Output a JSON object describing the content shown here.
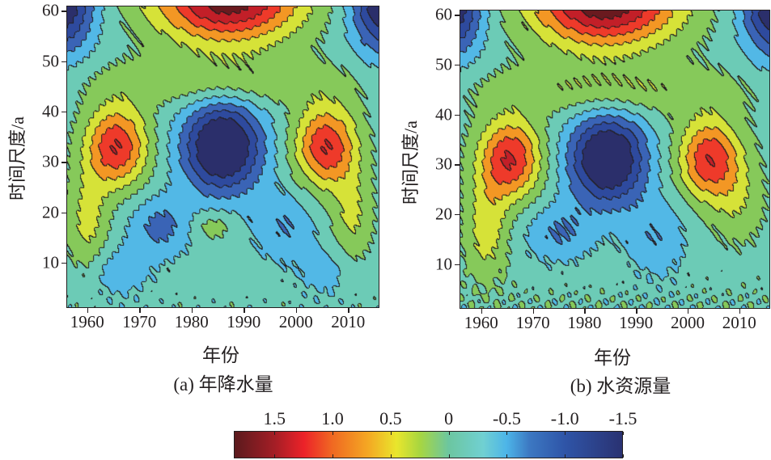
{
  "chart_data": [
    {
      "type": "heatmap",
      "subtype": "filled-contour",
      "title": "(a) 年降水量",
      "xlabel": "年份",
      "ylabel": "时间尺度/a",
      "xlim": [
        1956,
        2016
      ],
      "ylim": [
        1,
        61
      ],
      "xticks": [
        "1960",
        "1970",
        "1980",
        "1990",
        "2000",
        "2010"
      ],
      "yticks": [
        "10",
        "20",
        "30",
        "40",
        "50",
        "60"
      ],
      "features": [
        {
          "year": 1987,
          "scale": 63,
          "value": 1.9,
          "spread_year": 14,
          "spread_scale": 9
        },
        {
          "year": 1955,
          "scale": 62,
          "value": -1.4,
          "spread_year": 6,
          "spread_scale": 10
        },
        {
          "year": 2017,
          "scale": 62,
          "value": -1.4,
          "spread_year": 6,
          "spread_scale": 10
        },
        {
          "year": 1965.5,
          "scale": 33,
          "value": 1.35,
          "spread_year": 6,
          "spread_scale": 8
        },
        {
          "year": 2006,
          "scale": 33,
          "value": 1.35,
          "spread_year": 6,
          "spread_scale": 8
        },
        {
          "year": 1986,
          "scale": 33,
          "value": -1.65,
          "spread_year": 7.5,
          "spread_scale": 9
        },
        {
          "year": 1986,
          "scale": 46,
          "value": 0.45,
          "spread_year": 25,
          "spread_scale": 5
        },
        {
          "year": 1960,
          "scale": 18,
          "value": 0.55,
          "spread_year": 4,
          "spread_scale": 10
        },
        {
          "year": 2011,
          "scale": 19,
          "value": 0.5,
          "spread_year": 4,
          "spread_scale": 9
        },
        {
          "year": 1974,
          "scale": 17,
          "value": -0.55,
          "spread_year": 6,
          "spread_scale": 6
        },
        {
          "year": 1998,
          "scale": 17,
          "value": -0.45,
          "spread_year": 6,
          "spread_scale": 7
        },
        {
          "year": 1966,
          "scale": 8,
          "value": -0.35,
          "spread_year": 6,
          "spread_scale": 5
        },
        {
          "year": 2006,
          "scale": 8,
          "value": -0.3,
          "spread_year": 5,
          "spread_scale": 5
        },
        {
          "year": 1984,
          "scale": 17,
          "value": 0.35,
          "spread_year": 4,
          "spread_scale": 3
        }
      ],
      "baseline": -0.15,
      "small_scale_ripple": 0.22
    },
    {
      "type": "heatmap",
      "subtype": "filled-contour",
      "title": "(b) 水资源量",
      "xlabel": "年份",
      "ylabel": "时间尺度/a",
      "xlim": [
        1955.8,
        2016
      ],
      "ylim": [
        1,
        61
      ],
      "xticks": [
        "1960",
        "1970",
        "1980",
        "1990",
        "2000",
        "2010"
      ],
      "yticks": [
        "10",
        "20",
        "30",
        "40",
        "50",
        "60"
      ],
      "features": [
        {
          "year": 1984,
          "scale": 63,
          "value": 1.9,
          "spread_year": 14,
          "spread_scale": 9
        },
        {
          "year": 1954,
          "scale": 62,
          "value": -1.4,
          "spread_year": 6,
          "spread_scale": 10
        },
        {
          "year": 2017,
          "scale": 62,
          "value": -1.4,
          "spread_year": 6,
          "spread_scale": 10
        },
        {
          "year": 1965.5,
          "scale": 31,
          "value": 1.35,
          "spread_year": 6,
          "spread_scale": 8
        },
        {
          "year": 2004.5,
          "scale": 31,
          "value": 1.3,
          "spread_year": 6,
          "spread_scale": 8
        },
        {
          "year": 1984.5,
          "scale": 31,
          "value": -1.65,
          "spread_year": 7.5,
          "spread_scale": 9
        },
        {
          "year": 1985,
          "scale": 45,
          "value": 0.45,
          "spread_year": 25,
          "spread_scale": 5
        },
        {
          "year": 1961,
          "scale": 17,
          "value": 0.6,
          "spread_year": 4,
          "spread_scale": 10
        },
        {
          "year": 2010,
          "scale": 22,
          "value": 0.35,
          "spread_year": 5,
          "spread_scale": 8
        },
        {
          "year": 1975,
          "scale": 16,
          "value": -0.5,
          "spread_year": 7,
          "spread_scale": 6
        },
        {
          "year": 1994,
          "scale": 15,
          "value": -0.45,
          "spread_year": 6,
          "spread_scale": 8
        }
      ],
      "baseline": -0.12,
      "small_scale_ripple": 0.4
    }
  ],
  "colorbar": {
    "ticks": [
      "1.5",
      "1.0",
      "0.5",
      "0",
      "-0.5",
      "-1.0",
      "-1.5"
    ],
    "tick_values": [
      1.5,
      1.0,
      0.5,
      0,
      -0.5,
      -1.0,
      -1.5
    ],
    "range": [
      1.85,
      -1.5
    ],
    "levels": [
      -1.2,
      -0.9,
      -0.6,
      -0.3,
      0,
      0.3,
      0.6,
      0.9,
      1.2,
      1.5
    ],
    "level_colors": [
      "#2b2f6b",
      "#2e4a9e",
      "#3a64b6",
      "#52b8e6",
      "#6ccbb6",
      "#86c95a",
      "#d6e238",
      "#f39724",
      "#ee3a2a",
      "#c21f28",
      "#6a1a1f"
    ],
    "gradient": [
      {
        "v": 1.85,
        "c": "#5b1a1d"
      },
      {
        "v": 1.5,
        "c": "#a51e26"
      },
      {
        "v": 1.25,
        "c": "#ec2229"
      },
      {
        "v": 1.0,
        "c": "#f06a22"
      },
      {
        "v": 0.7,
        "c": "#f4a723"
      },
      {
        "v": 0.45,
        "c": "#e9e62c"
      },
      {
        "v": 0.25,
        "c": "#a8d640"
      },
      {
        "v": 0.0,
        "c": "#6cc6a0"
      },
      {
        "v": -0.3,
        "c": "#70d0d2"
      },
      {
        "v": -0.5,
        "c": "#4db5e8"
      },
      {
        "v": -0.7,
        "c": "#3c78c2"
      },
      {
        "v": -1.0,
        "c": "#2f55a8"
      },
      {
        "v": -1.5,
        "c": "#2a3272"
      }
    ]
  }
}
